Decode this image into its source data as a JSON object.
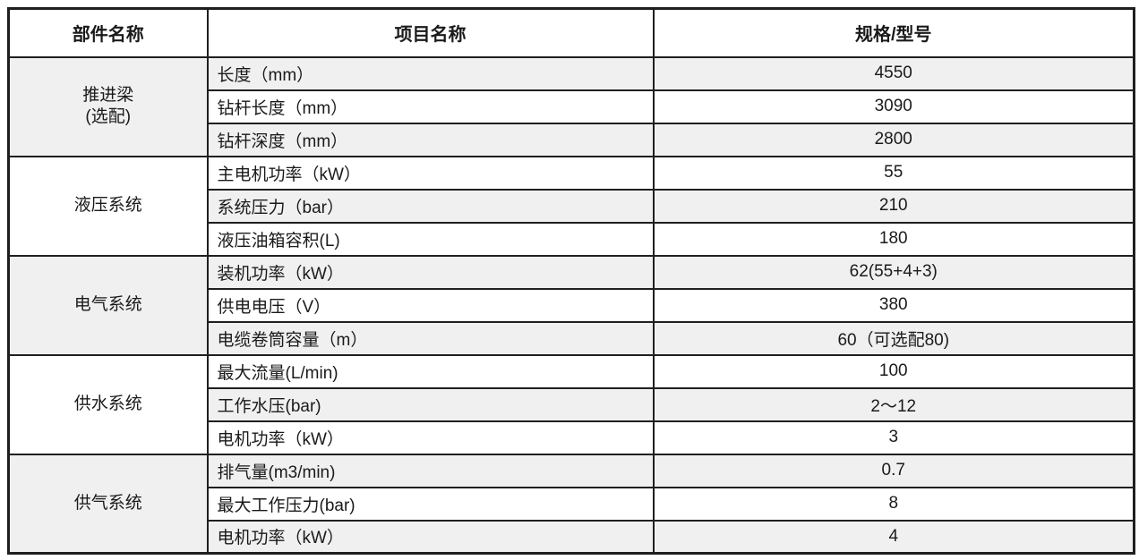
{
  "table": {
    "headers": [
      "部件名称",
      "项目名称",
      "规格/型号"
    ],
    "groups": [
      {
        "name": "推进梁\n(选配)",
        "rows": [
          {
            "item": "长度（mm）",
            "value": "4550"
          },
          {
            "item": "钻杆长度（mm）",
            "value": "3090"
          },
          {
            "item": "钻杆深度（mm）",
            "value": "2800"
          }
        ]
      },
      {
        "name": "液压系统",
        "rows": [
          {
            "item": "主电机功率（kW）",
            "value": "55"
          },
          {
            "item": "系统压力（bar）",
            "value": "210"
          },
          {
            "item": "液压油箱容积(L)",
            "value": "180"
          }
        ]
      },
      {
        "name": "电气系统",
        "rows": [
          {
            "item": "装机功率（kW）",
            "value": "62(55+4+3)"
          },
          {
            "item": "供电电压（V）",
            "value": "380"
          },
          {
            "item": "电缆卷筒容量（m）",
            "value": "60（可选配80)"
          }
        ]
      },
      {
        "name": "供水系统",
        "rows": [
          {
            "item": "最大流量(L/min)",
            "value": "100"
          },
          {
            "item": "工作水压(bar)",
            "value": "2～12"
          },
          {
            "item": "电机功率（kW）",
            "value": "3"
          }
        ]
      },
      {
        "name": "供气系统",
        "rows": [
          {
            "item": "排气量(m3/min)",
            "value": "0.7"
          },
          {
            "item": "最大工作压力(bar)",
            "value": "8"
          },
          {
            "item": "电机功率（kW）",
            "value": "4"
          }
        ]
      }
    ],
    "colors": {
      "stripe": "#f0f0f0",
      "border": "#1f1f1f",
      "text": "#1a1a1a",
      "background": "#ffffff"
    }
  }
}
